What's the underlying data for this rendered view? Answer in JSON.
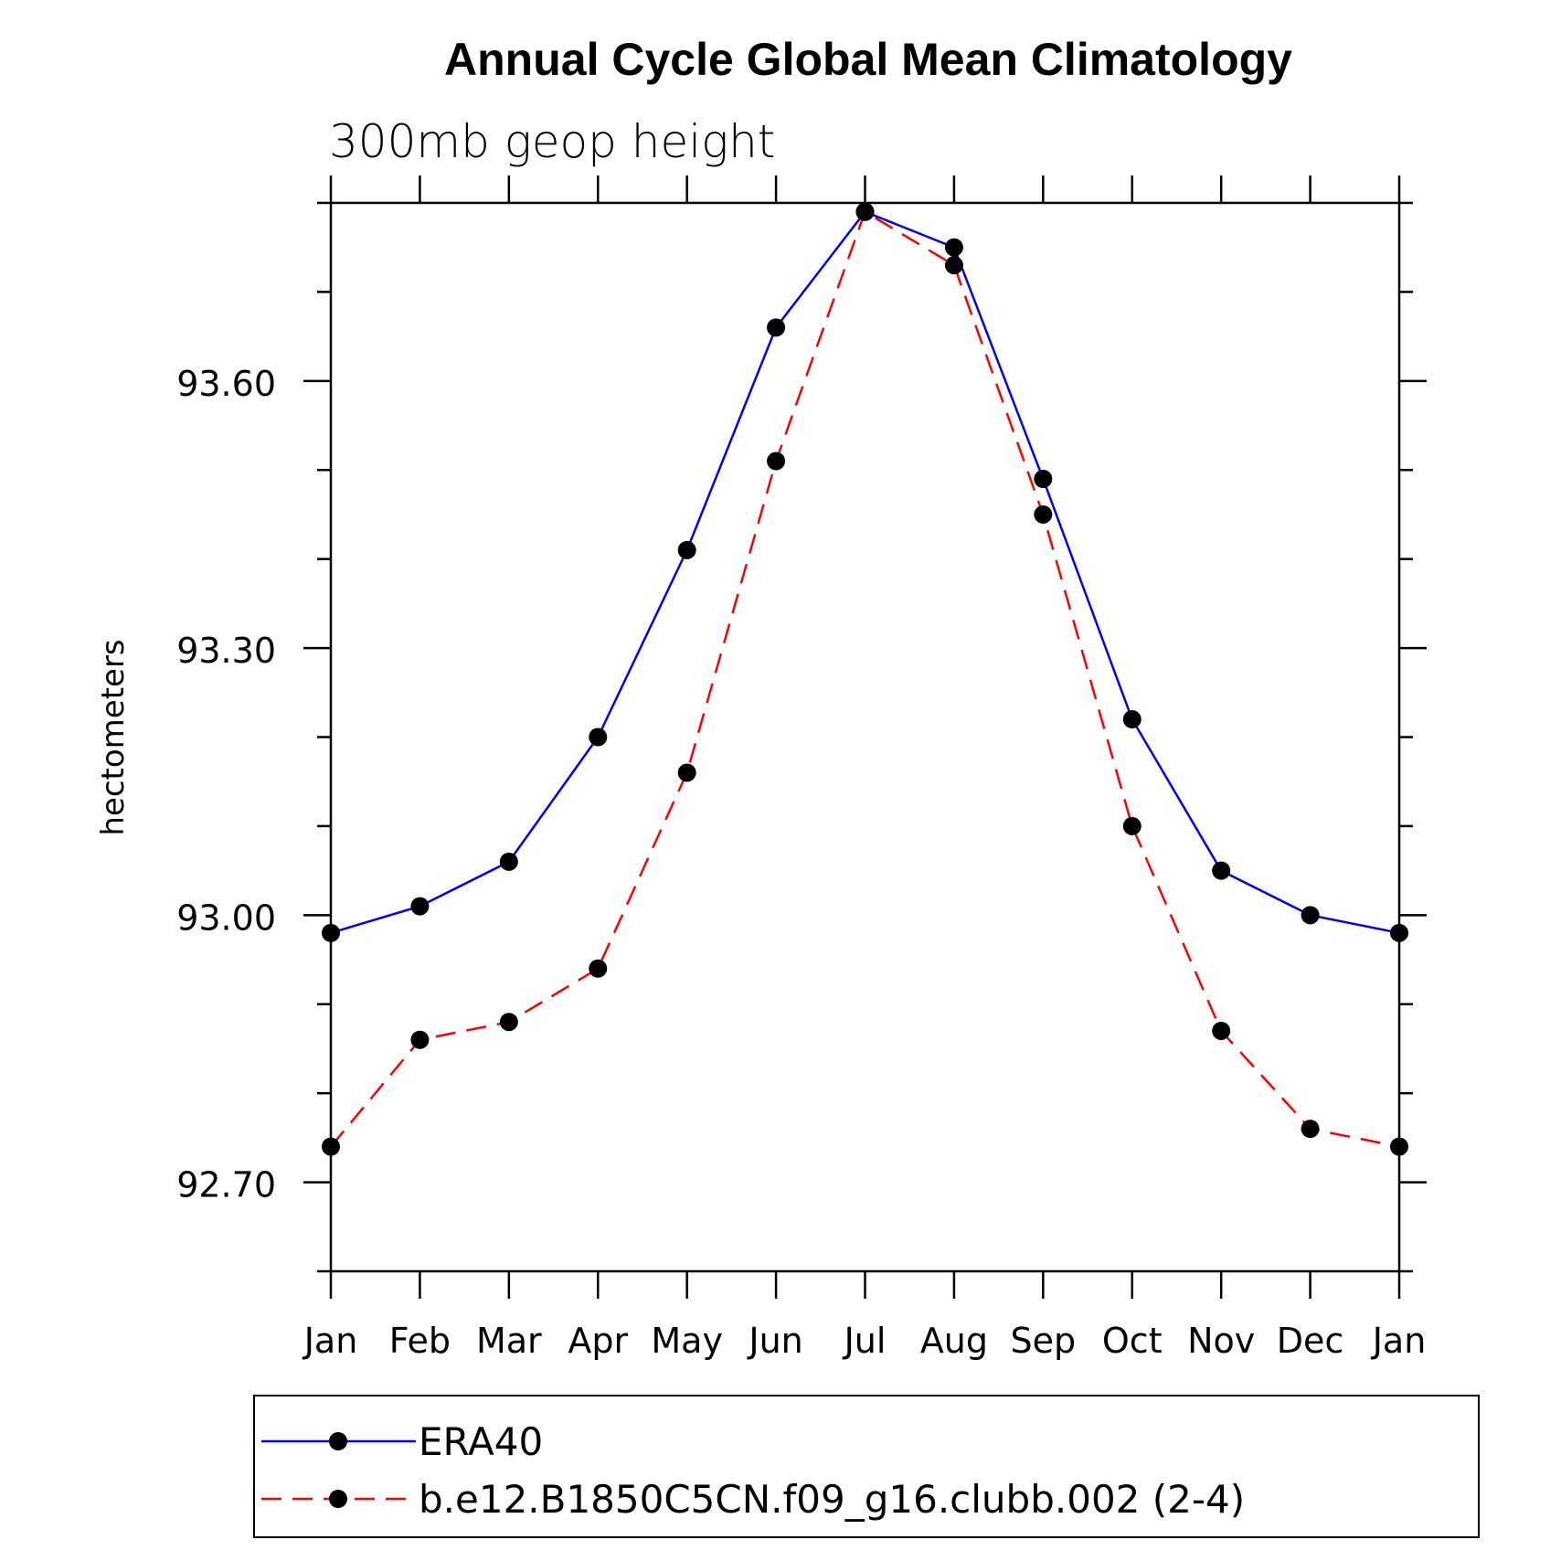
{
  "chart_data": {
    "type": "line",
    "title": "Annual Cycle Global Mean Climatology",
    "subtitle": "300mb geop height",
    "ylabel": "hectometers",
    "xlabel": "",
    "categories": [
      "Jan",
      "Feb",
      "Mar",
      "Apr",
      "May",
      "Jun",
      "Jul",
      "Aug",
      "Sep",
      "Oct",
      "Nov",
      "Dec",
      "Jan"
    ],
    "ylim": [
      92.6,
      93.8
    ],
    "yticks_major": [
      "92.70",
      "93.00",
      "93.30",
      "93.60"
    ],
    "yticks_minor_step": 0.1,
    "legend_position": "bottom",
    "grid": false,
    "series": [
      {
        "name": "ERA40",
        "color": "#0000ff",
        "dash": "solid",
        "values": [
          92.98,
          93.01,
          93.06,
          93.2,
          93.41,
          93.66,
          93.79,
          93.75,
          93.49,
          93.22,
          93.05,
          93.0,
          92.98
        ]
      },
      {
        "name": "b.e12.B1850C5CN.f09_g16.clubb.002 (2-4)",
        "color": "#ff0000",
        "dash": "dashed",
        "values": [
          92.74,
          92.86,
          92.88,
          92.94,
          93.16,
          93.51,
          93.79,
          93.73,
          93.45,
          93.1,
          92.87,
          92.76,
          92.74
        ]
      }
    ]
  }
}
